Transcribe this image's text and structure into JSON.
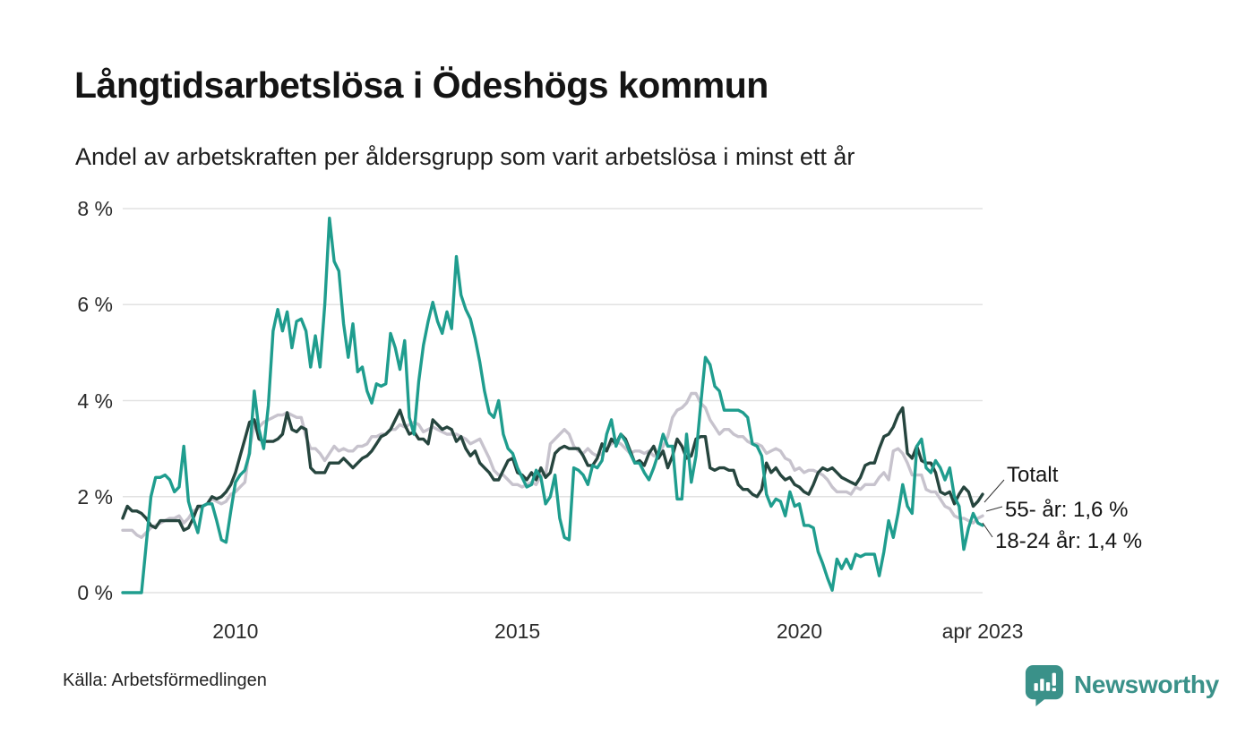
{
  "title": "Långtidsarbetslösa i Ödeshögs kommun",
  "subtitle": "Andel av arbetskraften per åldersgrupp som varit arbetslösa i minst ett år",
  "source": "Källa: Arbetsförmedlingen",
  "branding": {
    "name": "Newsworthy",
    "logo_icon": "speech-bubble-bar-chart-icon",
    "color": "#3a9189"
  },
  "annotations": [
    {
      "label": "Totalt",
      "series": "Totalt"
    },
    {
      "label": "55- år: 1,6 %",
      "series": "55- år"
    },
    {
      "label": "18-24 år: 1,4 %",
      "series": "18-24 år"
    }
  ],
  "colors": {
    "teal_line": "#1f9d8e",
    "dark_line": "#26453e",
    "gray_line": "#c7c3cd",
    "gridline": "#e2e2e2",
    "leader_line": "#333333"
  },
  "chart_data": {
    "type": "line",
    "title": "Långtidsarbetslösa i Ödeshögs kommun",
    "xlabel": "",
    "ylabel": "",
    "x_start": "2008-01",
    "x_end": "2023-04",
    "x_frequency": "monthly",
    "ylim": [
      0,
      8
    ],
    "grid": "horizontal",
    "legend_position": "end-of-line-labels",
    "y_ticks": [
      "0 %",
      "2 %",
      "4 %",
      "6 %",
      "8 %"
    ],
    "y_tick_values": [
      0,
      2,
      4,
      6,
      8
    ],
    "x_ticks": [
      {
        "label": "2010",
        "month_index": 24
      },
      {
        "label": "2015",
        "month_index": 84
      },
      {
        "label": "2020",
        "month_index": 144
      },
      {
        "label": "apr 2023",
        "month_index": 183
      }
    ],
    "series": [
      {
        "name": "55- år",
        "color": "#c7c3cd",
        "end_value_label": "55- år: 1,6 %",
        "values": [
          1.3,
          1.3,
          1.3,
          1.2,
          1.15,
          1.25,
          1.35,
          1.4,
          1.45,
          1.5,
          1.55,
          1.55,
          1.6,
          1.45,
          1.55,
          1.7,
          1.75,
          1.8,
          1.85,
          1.95,
          1.9,
          1.85,
          1.9,
          2.05,
          2.1,
          2.2,
          2.3,
          3.0,
          3.5,
          3.45,
          3.55,
          3.6,
          3.65,
          3.7,
          3.7,
          3.75,
          3.7,
          3.65,
          3.65,
          3.25,
          3.0,
          3.0,
          2.9,
          2.75,
          2.9,
          3.05,
          2.95,
          3.0,
          2.95,
          2.95,
          3.05,
          3.05,
          3.1,
          3.25,
          3.25,
          3.3,
          3.3,
          3.4,
          3.4,
          3.5,
          3.45,
          3.5,
          3.55,
          3.5,
          3.35,
          3.4,
          3.45,
          3.4,
          3.35,
          3.3,
          3.3,
          3.3,
          3.25,
          3.2,
          3.1,
          3.15,
          3.2,
          3.0,
          2.8,
          2.55,
          2.45,
          2.45,
          2.35,
          2.25,
          2.25,
          2.2,
          2.25,
          2.3,
          2.25,
          2.45,
          2.45,
          3.1,
          3.2,
          3.3,
          3.4,
          3.3,
          3.05,
          2.95,
          2.9,
          3.0,
          2.9,
          2.85,
          2.9,
          3.0,
          3.1,
          3.15,
          3.1,
          3.0,
          2.9,
          2.95,
          2.95,
          2.9,
          2.95,
          2.85,
          2.85,
          3.05,
          3.25,
          3.65,
          3.8,
          3.85,
          3.95,
          4.15,
          4.15,
          3.95,
          3.85,
          3.6,
          3.45,
          3.3,
          3.4,
          3.4,
          3.3,
          3.25,
          3.25,
          3.15,
          3.1,
          3.1,
          3.05,
          2.9,
          2.95,
          3.0,
          2.95,
          2.8,
          2.75,
          2.55,
          2.6,
          2.5,
          2.55,
          2.55,
          2.5,
          2.45,
          2.35,
          2.2,
          2.1,
          2.1,
          2.1,
          2.05,
          2.2,
          2.15,
          2.25,
          2.25,
          2.25,
          2.4,
          2.5,
          2.35,
          2.95,
          3.0,
          2.9,
          2.7,
          2.45,
          2.45,
          2.45,
          2.15,
          2.1,
          2.1,
          1.95,
          1.8,
          1.75,
          1.6,
          1.55,
          1.55,
          1.5,
          1.45,
          1.55,
          1.6
        ]
      },
      {
        "name": "Totalt",
        "color": "#26453e",
        "end_value_label": "Totalt",
        "values": [
          1.55,
          1.8,
          1.7,
          1.7,
          1.65,
          1.55,
          1.4,
          1.35,
          1.5,
          1.5,
          1.5,
          1.5,
          1.5,
          1.3,
          1.35,
          1.55,
          1.8,
          1.8,
          1.85,
          2.0,
          1.95,
          2.0,
          2.1,
          2.25,
          2.5,
          2.85,
          3.2,
          3.55,
          3.6,
          3.2,
          3.15,
          3.15,
          3.15,
          3.2,
          3.3,
          3.75,
          3.4,
          3.35,
          3.45,
          3.4,
          2.6,
          2.5,
          2.5,
          2.5,
          2.7,
          2.7,
          2.7,
          2.8,
          2.7,
          2.6,
          2.7,
          2.8,
          2.85,
          2.95,
          3.1,
          3.25,
          3.3,
          3.4,
          3.6,
          3.8,
          3.5,
          3.3,
          3.35,
          3.2,
          3.2,
          3.1,
          3.6,
          3.5,
          3.4,
          3.45,
          3.4,
          3.15,
          3.25,
          3.0,
          2.85,
          2.95,
          2.7,
          2.6,
          2.5,
          2.35,
          2.35,
          2.55,
          2.75,
          2.8,
          2.5,
          2.45,
          2.35,
          2.5,
          2.35,
          2.6,
          2.4,
          2.5,
          2.9,
          3.0,
          3.05,
          3.0,
          3.0,
          3.0,
          2.85,
          2.65,
          2.65,
          2.8,
          3.1,
          2.95,
          3.2,
          3.1,
          3.3,
          3.2,
          2.95,
          2.7,
          2.75,
          2.65,
          2.9,
          3.05,
          2.8,
          2.95,
          2.6,
          2.85,
          3.2,
          3.05,
          2.8,
          2.85,
          3.2,
          3.25,
          3.25,
          2.6,
          2.55,
          2.6,
          2.6,
          2.55,
          2.55,
          2.25,
          2.15,
          2.15,
          2.05,
          2.0,
          2.15,
          2.7,
          2.5,
          2.6,
          2.45,
          2.35,
          2.4,
          2.25,
          2.2,
          2.1,
          2.05,
          2.25,
          2.5,
          2.6,
          2.55,
          2.6,
          2.5,
          2.4,
          2.35,
          2.3,
          2.25,
          2.4,
          2.65,
          2.7,
          2.7,
          3.0,
          3.25,
          3.3,
          3.45,
          3.7,
          3.85,
          2.9,
          2.8,
          3.05,
          2.75,
          2.7,
          2.7,
          2.5,
          2.1,
          2.05,
          2.1,
          1.85,
          2.05,
          2.2,
          2.1,
          1.8,
          1.9,
          2.05
        ]
      },
      {
        "name": "18-24 år",
        "color": "#1f9d8e",
        "end_value_label": "18-24 år: 1,4 %",
        "values": [
          0,
          0,
          0,
          0,
          0,
          1.0,
          2.0,
          2.4,
          2.4,
          2.45,
          2.35,
          2.1,
          2.2,
          3.05,
          1.9,
          1.55,
          1.25,
          1.8,
          1.85,
          1.85,
          1.5,
          1.1,
          1.05,
          1.7,
          2.3,
          2.45,
          2.55,
          2.9,
          4.2,
          3.4,
          3.0,
          3.9,
          5.45,
          5.9,
          5.45,
          5.85,
          5.1,
          5.65,
          5.7,
          5.45,
          4.7,
          5.35,
          4.7,
          6.0,
          7.8,
          6.9,
          6.7,
          5.6,
          4.9,
          5.6,
          4.6,
          4.7,
          4.2,
          3.95,
          4.35,
          4.3,
          4.35,
          5.4,
          5.1,
          4.65,
          5.25,
          3.65,
          3.3,
          4.4,
          5.15,
          5.65,
          6.05,
          5.65,
          5.4,
          5.85,
          5.5,
          7.0,
          6.2,
          5.9,
          5.7,
          5.3,
          4.8,
          4.2,
          3.75,
          3.65,
          4.0,
          3.3,
          3.0,
          2.9,
          2.6,
          2.4,
          2.2,
          2.25,
          2.55,
          2.4,
          1.85,
          2.0,
          2.45,
          1.55,
          1.15,
          1.1,
          2.6,
          2.55,
          2.45,
          2.25,
          2.65,
          2.6,
          2.75,
          3.3,
          3.6,
          3.05,
          3.3,
          3.15,
          2.9,
          2.7,
          2.7,
          2.5,
          2.35,
          2.6,
          2.9,
          3.3,
          3.05,
          3.05,
          1.95,
          1.95,
          3.3,
          2.3,
          2.85,
          3.9,
          4.9,
          4.75,
          4.3,
          4.2,
          3.8,
          3.8,
          3.8,
          3.8,
          3.75,
          3.65,
          3.1,
          3.05,
          2.85,
          2.05,
          1.8,
          1.95,
          1.9,
          1.6,
          2.1,
          1.8,
          1.85,
          1.4,
          1.4,
          1.35,
          0.85,
          0.6,
          0.3,
          0.05,
          0.7,
          0.5,
          0.7,
          0.5,
          0.8,
          0.75,
          0.8,
          0.8,
          0.8,
          0.35,
          0.85,
          1.5,
          1.15,
          1.65,
          2.25,
          1.8,
          1.65,
          3.05,
          3.2,
          2.6,
          2.5,
          2.75,
          2.6,
          2.35,
          2.6,
          2.0,
          1.8,
          0.9,
          1.35,
          1.65,
          1.45,
          1.4
        ]
      }
    ]
  }
}
